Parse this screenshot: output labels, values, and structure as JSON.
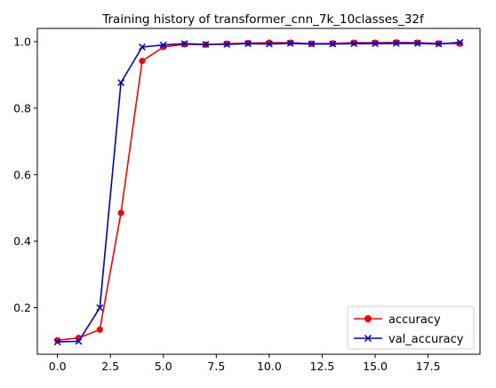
{
  "chart_data": {
    "type": "line",
    "title": "Training history of transformer_cnn_7k_10classes_32f",
    "xlabel": "",
    "ylabel": "",
    "x": [
      0,
      1,
      2,
      3,
      4,
      5,
      6,
      7,
      8,
      9,
      10,
      11,
      12,
      13,
      14,
      15,
      16,
      17,
      18,
      19
    ],
    "xlim": [
      -0.95,
      19.95
    ],
    "ylim": [
      0.06,
      1.04
    ],
    "xticks": [
      0.0,
      2.5,
      5.0,
      7.5,
      10.0,
      12.5,
      15.0,
      17.5
    ],
    "xtick_labels": [
      "0.0",
      "2.5",
      "5.0",
      "7.5",
      "10.0",
      "12.5",
      "15.0",
      "17.5"
    ],
    "yticks": [
      0.2,
      0.4,
      0.6,
      0.8,
      1.0
    ],
    "ytick_labels": [
      "0.2",
      "0.4",
      "0.6",
      "0.8",
      "1.0"
    ],
    "grid": false,
    "legend_position": "lower-right",
    "series": [
      {
        "name": "accuracy",
        "color": "#ff0000",
        "marker": "circle",
        "values": [
          0.102,
          0.109,
          0.134,
          0.485,
          0.942,
          0.984,
          0.992,
          0.991,
          0.994,
          0.996,
          0.997,
          0.997,
          0.994,
          0.995,
          0.997,
          0.997,
          0.998,
          0.997,
          0.995,
          0.994
        ]
      },
      {
        "name": "val_accuracy",
        "color": "#0000cc",
        "marker": "x",
        "values": [
          0.097,
          0.099,
          0.2,
          0.877,
          0.984,
          0.99,
          0.994,
          0.992,
          0.992,
          0.994,
          0.993,
          0.995,
          0.993,
          0.993,
          0.994,
          0.994,
          0.995,
          0.995,
          0.993,
          0.998
        ]
      }
    ]
  }
}
